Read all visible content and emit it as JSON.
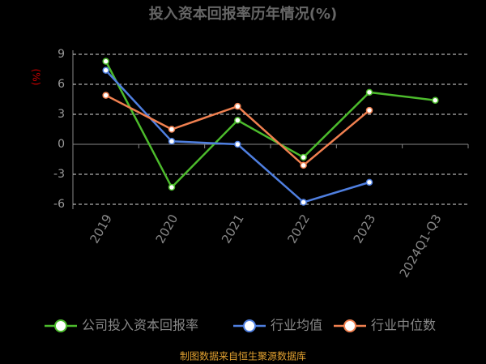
{
  "chart_data": {
    "type": "line",
    "title": "投入资本回报率历年情况(%)",
    "y_label": "(%)",
    "categories": [
      "2019",
      "2020",
      "2021",
      "2022",
      "2023",
      "2024Q1-Q3"
    ],
    "series": [
      {
        "name": "公司投入资本回报率",
        "color": "#4cbb2c",
        "values": [
          8.3,
          -4.3,
          2.4,
          -1.3,
          5.2,
          4.4
        ]
      },
      {
        "name": "行业均值",
        "color": "#4f7fe0",
        "values": [
          7.4,
          0.3,
          0,
          -5.8,
          -3.8,
          null
        ]
      },
      {
        "name": "行业中位数",
        "color": "#f08050",
        "values": [
          4.9,
          1.5,
          3.8,
          -2.1,
          3.4,
          null
        ]
      }
    ],
    "ylim": [
      -6,
      9
    ],
    "yticks": [
      -6,
      -3,
      0,
      3,
      6,
      9
    ],
    "grid": true,
    "source": "制图数据来自恒生聚源数据库"
  }
}
